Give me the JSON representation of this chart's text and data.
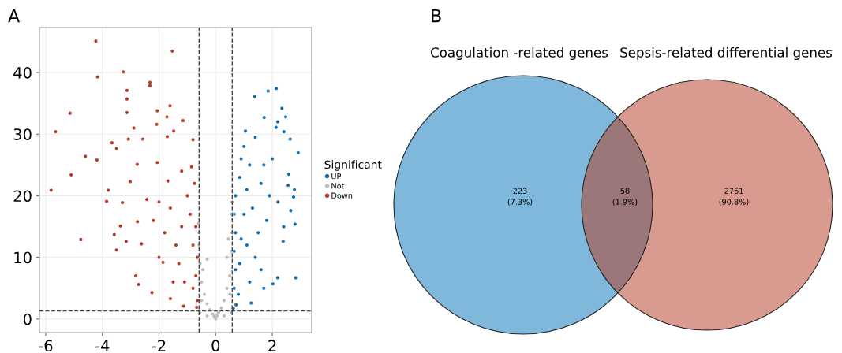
{
  "chart_data": [
    {
      "type": "scatter",
      "title": "A",
      "legend_title": "Significant",
      "legend": "right",
      "grid": true,
      "marker": "circle",
      "xlim": [
        -6.22,
        3.39
      ],
      "ylim": [
        -2.2,
        47.3
      ],
      "xticks": [
        -6,
        -4,
        -2,
        0,
        2
      ],
      "yticks": [
        0,
        10,
        20,
        30,
        40
      ],
      "ref_lines": [
        {
          "axis": "x",
          "value": -0.585,
          "line_style": "dashed",
          "color": "#444444"
        },
        {
          "axis": "x",
          "value": 0.585,
          "line_style": "dashed",
          "color": "#444444"
        },
        {
          "axis": "y",
          "value": 1.3,
          "line_style": "dashed",
          "color": "#444444"
        }
      ],
      "series": [
        {
          "name": "UP",
          "color": "#1170b3",
          "x": [
            1.38,
            1.85,
            2.14,
            2.34,
            2.47,
            1.71,
            2.19,
            2.41,
            2.13,
            1.05,
            2.63,
            2.91,
            2.78,
            2.75,
            2.65,
            2.8,
            2.82,
            2.19,
            2.02,
            1.7,
            1.25,
            2.38,
            2.56,
            2.58,
            0.62,
            0.72,
            0.65,
            0.7,
            0.65,
            0.7,
            0.65,
            0.7,
            0.85,
            0.9,
            1.0,
            1.2,
            1.1,
            1.0,
            0.9,
            0.85,
            0.8,
            1.3,
            1.5,
            1.4,
            1.6,
            1.8,
            1.9,
            1.7,
            2.0,
            1.2,
            1.6,
            2.2,
            2.4,
            1.4,
            1.1
          ],
          "values": [
            36.1,
            37.0,
            37.4,
            34.2,
            32.8,
            32.7,
            32.0,
            30.4,
            31.1,
            30.5,
            29.2,
            27.0,
            21.0,
            19.8,
            17.6,
            15.4,
            6.7,
            6.7,
            5.7,
            5.0,
            2.6,
            12.6,
            21.7,
            23.5,
            1.7,
            2.3,
            5,
            8,
            11,
            14,
            17,
            20,
            23,
            26,
            28,
            25,
            21,
            17,
            13,
            9,
            4,
            18,
            14,
            10,
            22,
            16,
            20,
            25,
            26,
            6,
            8,
            19,
            15,
            29.5,
            12
          ]
        },
        {
          "name": "Not",
          "color": "#bdbdbd",
          "x": [
            0,
            0.05,
            -0.05,
            -0.1,
            0.1,
            -0.2,
            0.2,
            -0.3,
            0.3,
            -0.4,
            0.4,
            -0.5,
            0.5,
            -0.55,
            0.55,
            -0.58,
            0.58,
            -0.58,
            0.57,
            0.58,
            -0.6,
            -0.3,
            -0.45,
            0.4,
            0.45,
            -0.55,
            0.55,
            -0.3,
            0.3,
            -0.5,
            0.5
          ],
          "values": [
            0,
            0.5,
            0.4,
            0.8,
            1.0,
            1.5,
            1.8,
            2.5,
            3,
            4,
            5,
            6,
            7,
            9,
            11,
            12,
            14,
            14,
            17,
            19,
            15.5,
            9.7,
            8,
            10,
            13,
            1,
            1,
            0.5,
            0.5,
            3,
            4
          ]
        },
        {
          "name": "Down",
          "color": "#b83a28",
          "x": [
            -4.23,
            -1.53,
            -3.26,
            -4.17,
            -2.32,
            -2.32,
            -3.13,
            -3.13,
            -1.61,
            -5.14,
            -3.13,
            -2.06,
            -1.15,
            -1.72,
            -2.89,
            -2.08,
            -5.65,
            -1.48,
            -2.57,
            -0.8,
            -1.71,
            -3.66,
            -3.08,
            -3.5,
            -4.6,
            -4.19,
            -2.77,
            -2.06,
            -0.85,
            -3.02,
            -5.1,
            -1.69,
            -5.81,
            -3.79,
            -3.85,
            -3.29,
            -2.43,
            -2.76,
            -3.36,
            -3.58,
            -4.76,
            -3.16,
            -3.5,
            -2.62,
            -2.82,
            -2.72,
            -2.25,
            -1.86,
            -1.6,
            -1.13,
            -0.67,
            -1.0,
            -0.9,
            -0.7,
            -0.8,
            -0.65,
            -0.7,
            -0.8,
            -0.65,
            -1.2,
            -1.4,
            -1.3,
            -1.1,
            -1.6,
            -1.8,
            -2.0,
            -1.5,
            -0.75,
            -1.2,
            -2.0,
            -2.2
          ],
          "values": [
            45.1,
            43.5,
            40.1,
            39.3,
            38.4,
            37.9,
            37.1,
            35.7,
            34.6,
            33.4,
            33.5,
            33.8,
            32.2,
            32.8,
            31.0,
            31.6,
            30.4,
            30.5,
            29.2,
            29.1,
            29.6,
            28.6,
            29.2,
            27.7,
            26.4,
            25.8,
            25.1,
            25.4,
            24.7,
            22.3,
            23.4,
            22.4,
            20.9,
            20.9,
            19.1,
            18.9,
            19.4,
            15.8,
            15.1,
            13.7,
            12.9,
            12.6,
            11.2,
            12.2,
            7.0,
            5.6,
            4.3,
            9.2,
            3.3,
            2.1,
            1.9,
            20,
            17,
            15,
            12,
            10,
            7,
            5,
            3,
            15,
            12,
            9,
            6,
            18,
            14,
            10,
            6,
            22,
            24,
            19,
            16
          ]
        }
      ]
    },
    {
      "type": "other",
      "title": "B",
      "annotations": [
        "Coagulation -related genes",
        "Sepsis-related differential genes"
      ],
      "categories": [
        null,
        null,
        null
      ],
      "values": [
        223,
        58,
        2761
      ],
      "colors": [
        "#80b8dc",
        "#9b7779",
        "#d99a8f"
      ],
      "value_labels": [
        "223\n(7.3%)",
        "58\n(1.9%)",
        "2761\n(90.8%)"
      ]
    }
  ]
}
